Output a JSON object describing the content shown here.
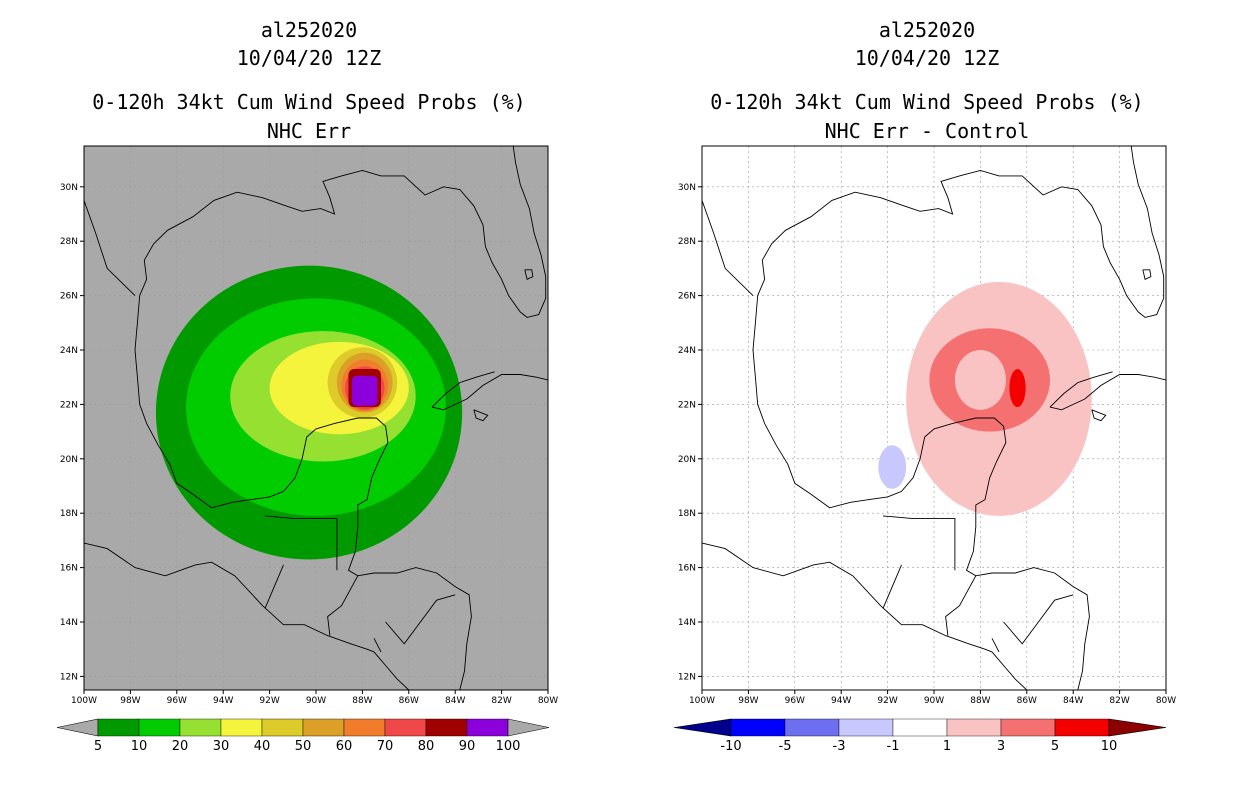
{
  "panels": [
    {
      "storm_id": "al252020",
      "datetime": "10/04/20 12Z",
      "title": "0-120h 34kt Cum Wind Speed Probs (%)",
      "subtitle": "NHC Err"
    },
    {
      "storm_id": "al252020",
      "datetime": "10/04/20 12Z",
      "title": "0-120h 34kt Cum Wind Speed Probs (%)",
      "subtitle": "NHC Err - Control"
    }
  ],
  "chart_data": [
    {
      "type": "heatmap",
      "title": "0-120h 34kt Cum Wind Speed Probs (%)",
      "subtitle": "NHC Err",
      "x_ticks": [
        "100W",
        "98W",
        "96W",
        "94W",
        "92W",
        "90W",
        "88W",
        "86W",
        "84W",
        "82W",
        "80W"
      ],
      "y_ticks": [
        "12N",
        "14N",
        "16N",
        "18N",
        "20N",
        "22N",
        "24N",
        "26N",
        "28N",
        "30N"
      ],
      "xlim": [
        -100,
        -80
      ],
      "ylim": [
        11.5,
        31.5
      ],
      "background": "#a9a9a9",
      "colorbar": {
        "labels": [
          "5",
          "10",
          "20",
          "30",
          "40",
          "50",
          "60",
          "70",
          "80",
          "90",
          "100"
        ],
        "colors": [
          "#009a00",
          "#00cc00",
          "#96e032",
          "#f4f43c",
          "#dccb28",
          "#dca028",
          "#f07c2c",
          "#f04848",
          "#a00000",
          "#8c00dc"
        ],
        "end_color": "#a9a9a9"
      },
      "contours": [
        {
          "level": 5,
          "color": "#009a00",
          "center": [
            -90.3,
            21.7
          ],
          "rx": 6.6,
          "ry": 5.4
        },
        {
          "level": 10,
          "color": "#00cc00",
          "center": [
            -90.0,
            21.9
          ],
          "rx": 5.6,
          "ry": 4.0
        },
        {
          "level": 20,
          "color": "#96e032",
          "center": [
            -89.7,
            22.3
          ],
          "rx": 4.0,
          "ry": 2.4
        },
        {
          "level": 30,
          "color": "#f4f43c",
          "center": [
            -89.0,
            22.6
          ],
          "rx": 3.0,
          "ry": 1.7
        },
        {
          "level": 40,
          "color": "#dccb28",
          "center": [
            -88.0,
            22.8
          ],
          "rx": 1.5,
          "ry": 1.3
        },
        {
          "level": 50,
          "color": "#dca028",
          "center": [
            -87.9,
            22.8
          ],
          "rx": 1.2,
          "ry": 1.1
        },
        {
          "level": 60,
          "color": "#f07c2c",
          "center": [
            -87.9,
            22.7
          ],
          "rx": 1.0,
          "ry": 0.95
        },
        {
          "level": 70,
          "color": "#f04848",
          "center": [
            -87.9,
            22.6
          ],
          "rx": 0.85,
          "ry": 0.8
        },
        {
          "level": 80,
          "color": "#a00000",
          "center": [
            -87.9,
            22.6
          ],
          "rx": 0.7,
          "ry": 0.7
        },
        {
          "level": 90,
          "color": "#8c00dc",
          "center": [
            -87.9,
            22.5
          ],
          "rx": 0.55,
          "ry": 0.55
        }
      ]
    },
    {
      "type": "heatmap",
      "title": "0-120h 34kt Cum Wind Speed Probs (%)",
      "subtitle": "NHC Err - Control",
      "x_ticks": [
        "100W",
        "98W",
        "96W",
        "94W",
        "92W",
        "90W",
        "88W",
        "86W",
        "84W",
        "82W",
        "80W"
      ],
      "y_ticks": [
        "12N",
        "14N",
        "16N",
        "18N",
        "20N",
        "22N",
        "24N",
        "26N",
        "28N",
        "30N"
      ],
      "xlim": [
        -100,
        -80
      ],
      "ylim": [
        11.5,
        31.5
      ],
      "background": "#ffffff",
      "colorbar": {
        "labels": [
          "-10",
          "-5",
          "-3",
          "-1",
          "1",
          "3",
          "5",
          "10"
        ],
        "colors": [
          "#0000ff",
          "#6e6ef0",
          "#c8c8ff",
          "#ffffff",
          "#fac3c3",
          "#f57070",
          "#f50000"
        ],
        "left_end_color": "#00008c",
        "right_end_color": "#8c0000"
      },
      "contours": [
        {
          "level": 1,
          "color": "#fac3c3",
          "center": [
            -87.2,
            22.2
          ],
          "rx": 4.0,
          "ry": 4.3
        },
        {
          "level": 3,
          "color": "#f57070",
          "center": [
            -87.6,
            22.9
          ],
          "rx": 2.6,
          "ry": 1.9
        },
        {
          "level": 1,
          "color": "#fac3c3",
          "center": [
            -88.0,
            22.9
          ],
          "rx": 1.1,
          "ry": 1.1
        },
        {
          "level": 5,
          "color": "#f50000",
          "center": [
            -86.4,
            22.6
          ],
          "rx": 0.35,
          "ry": 0.7
        },
        {
          "level": -1,
          "color": "#c8c8ff",
          "center": [
            -91.8,
            19.7
          ],
          "rx": 0.6,
          "ry": 0.8
        }
      ]
    }
  ]
}
